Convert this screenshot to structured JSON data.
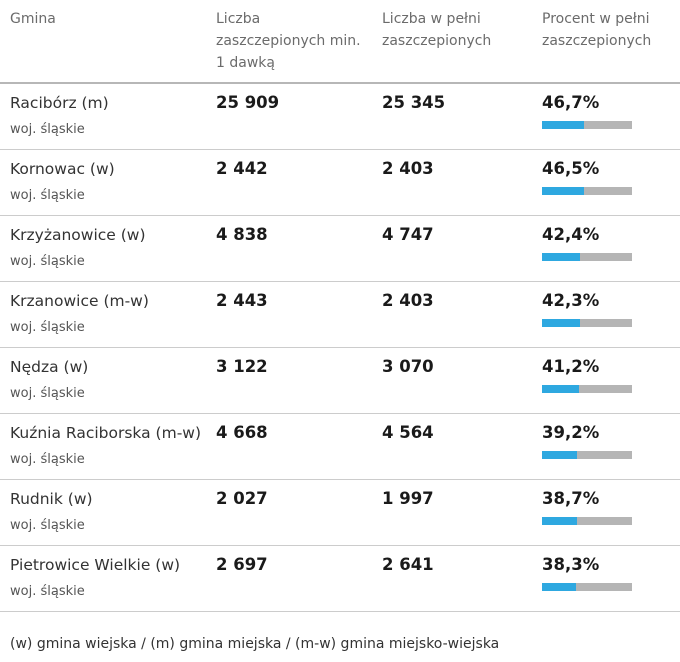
{
  "chart_data": {
    "type": "table",
    "columns": {
      "gmina": "Gmina",
      "dose1": "Liczba zaszczepionych min. 1 dawką",
      "full": "Liczba w pełni zaszczepionych",
      "percent": "Procent w pełni zaszczepionych"
    },
    "rows": [
      {
        "name": "Racibórz (m)",
        "region": "woj. śląskie",
        "dose1": "25 909",
        "full": "25 345",
        "percent_label": "46,7%",
        "percent": 46.7
      },
      {
        "name": "Kornowac (w)",
        "region": "woj. śląskie",
        "dose1": "2 442",
        "full": "2 403",
        "percent_label": "46,5%",
        "percent": 46.5
      },
      {
        "name": "Krzyżanowice (w)",
        "region": "woj. śląskie",
        "dose1": "4 838",
        "full": "4 747",
        "percent_label": "42,4%",
        "percent": 42.4
      },
      {
        "name": "Krzanowice (m-w)",
        "region": "woj. śląskie",
        "dose1": "2 443",
        "full": "2 403",
        "percent_label": "42,3%",
        "percent": 42.3
      },
      {
        "name": "Nędza (w)",
        "region": "woj. śląskie",
        "dose1": "3 122",
        "full": "3 070",
        "percent_label": "41,2%",
        "percent": 41.2
      },
      {
        "name": "Kuźnia Raciborska (m-w)",
        "region": "woj. śląskie",
        "dose1": "4 668",
        "full": "4 564",
        "percent_label": "39,2%",
        "percent": 39.2
      },
      {
        "name": "Rudnik (w)",
        "region": "woj. śląskie",
        "dose1": "2 027",
        "full": "1 997",
        "percent_label": "38,7%",
        "percent": 38.7
      },
      {
        "name": "Pietrowice Wielkie (w)",
        "region": "woj. śląskie",
        "dose1": "2 697",
        "full": "2 641",
        "percent_label": "38,3%",
        "percent": 38.3
      }
    ],
    "bar_max": 100
  },
  "footer": "(w) gmina wiejska / (m) gmina miejska / (m-w) gmina miejsko-wiejska",
  "colors": {
    "bar_fill": "#2ea8e0",
    "bar_track": "#b5b5b5",
    "divider": "#cccccc"
  }
}
